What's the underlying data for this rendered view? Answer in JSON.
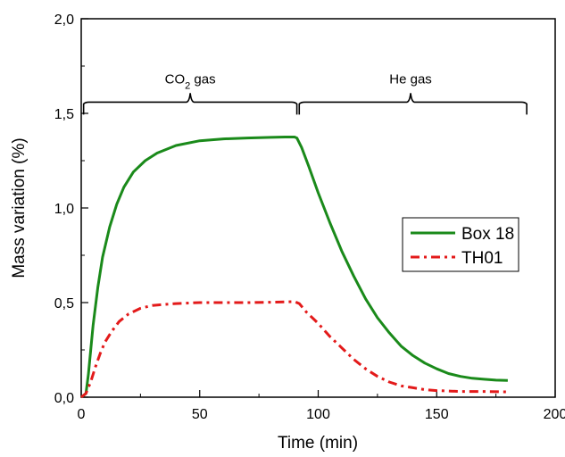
{
  "chart_data": {
    "type": "line",
    "xlabel": "Time (min)",
    "ylabel": "Mass variation (%)",
    "xlim": [
      0,
      200
    ],
    "ylim": [
      0,
      2.0
    ],
    "x_ticks": [
      0,
      50,
      100,
      150,
      200
    ],
    "x_tick_labels": [
      "0",
      "50",
      "100",
      "150",
      "200"
    ],
    "y_ticks": [
      0,
      0.5,
      1.0,
      1.5,
      2.0
    ],
    "y_tick_labels": [
      "0,0",
      "0,5",
      "1,0",
      "1,5",
      "2,0"
    ],
    "grid": false,
    "legend_position": "right",
    "annotations": [
      {
        "text_main": "CO",
        "text_sub": "2",
        "text_rest": " gas",
        "x_start": 1,
        "x_end": 91,
        "x_peak": 46,
        "y": 1.55
      },
      {
        "text_main": "He gas",
        "text_sub": "",
        "text_rest": "",
        "x_start": 92,
        "x_end": 188,
        "x_peak": 139,
        "y": 1.55
      }
    ],
    "series": [
      {
        "name": "Box 18",
        "color": "#1a8a1a",
        "style": "solid",
        "points": [
          [
            0,
            0.0
          ],
          [
            2,
            0.02
          ],
          [
            3,
            0.12
          ],
          [
            5,
            0.38
          ],
          [
            7,
            0.58
          ],
          [
            9,
            0.74
          ],
          [
            12,
            0.9
          ],
          [
            15,
            1.02
          ],
          [
            18,
            1.11
          ],
          [
            22,
            1.19
          ],
          [
            27,
            1.25
          ],
          [
            32,
            1.29
          ],
          [
            40,
            1.33
          ],
          [
            50,
            1.355
          ],
          [
            60,
            1.365
          ],
          [
            70,
            1.37
          ],
          [
            80,
            1.373
          ],
          [
            86,
            1.375
          ],
          [
            90,
            1.375
          ],
          [
            91,
            1.37
          ],
          [
            93,
            1.32
          ],
          [
            96,
            1.22
          ],
          [
            100,
            1.08
          ],
          [
            105,
            0.92
          ],
          [
            110,
            0.77
          ],
          [
            115,
            0.64
          ],
          [
            120,
            0.52
          ],
          [
            125,
            0.42
          ],
          [
            130,
            0.34
          ],
          [
            135,
            0.27
          ],
          [
            140,
            0.22
          ],
          [
            145,
            0.18
          ],
          [
            150,
            0.15
          ],
          [
            155,
            0.125
          ],
          [
            160,
            0.11
          ],
          [
            165,
            0.1
          ],
          [
            170,
            0.095
          ],
          [
            175,
            0.09
          ],
          [
            180,
            0.088
          ]
        ]
      },
      {
        "name": "TH01",
        "color": "#e31a1a",
        "style": "dashdot",
        "points": [
          [
            0,
            0.0
          ],
          [
            2,
            0.02
          ],
          [
            4,
            0.08
          ],
          [
            6,
            0.16
          ],
          [
            8,
            0.23
          ],
          [
            10,
            0.29
          ],
          [
            13,
            0.35
          ],
          [
            16,
            0.4
          ],
          [
            20,
            0.44
          ],
          [
            25,
            0.47
          ],
          [
            30,
            0.485
          ],
          [
            40,
            0.495
          ],
          [
            50,
            0.5
          ],
          [
            60,
            0.5
          ],
          [
            70,
            0.5
          ],
          [
            80,
            0.502
          ],
          [
            90,
            0.505
          ],
          [
            92,
            0.495
          ],
          [
            95,
            0.45
          ],
          [
            100,
            0.39
          ],
          [
            105,
            0.32
          ],
          [
            110,
            0.26
          ],
          [
            115,
            0.2
          ],
          [
            120,
            0.15
          ],
          [
            125,
            0.11
          ],
          [
            130,
            0.08
          ],
          [
            135,
            0.06
          ],
          [
            140,
            0.05
          ],
          [
            145,
            0.04
          ],
          [
            150,
            0.035
          ],
          [
            160,
            0.03
          ],
          [
            170,
            0.03
          ],
          [
            180,
            0.028
          ]
        ]
      }
    ]
  }
}
